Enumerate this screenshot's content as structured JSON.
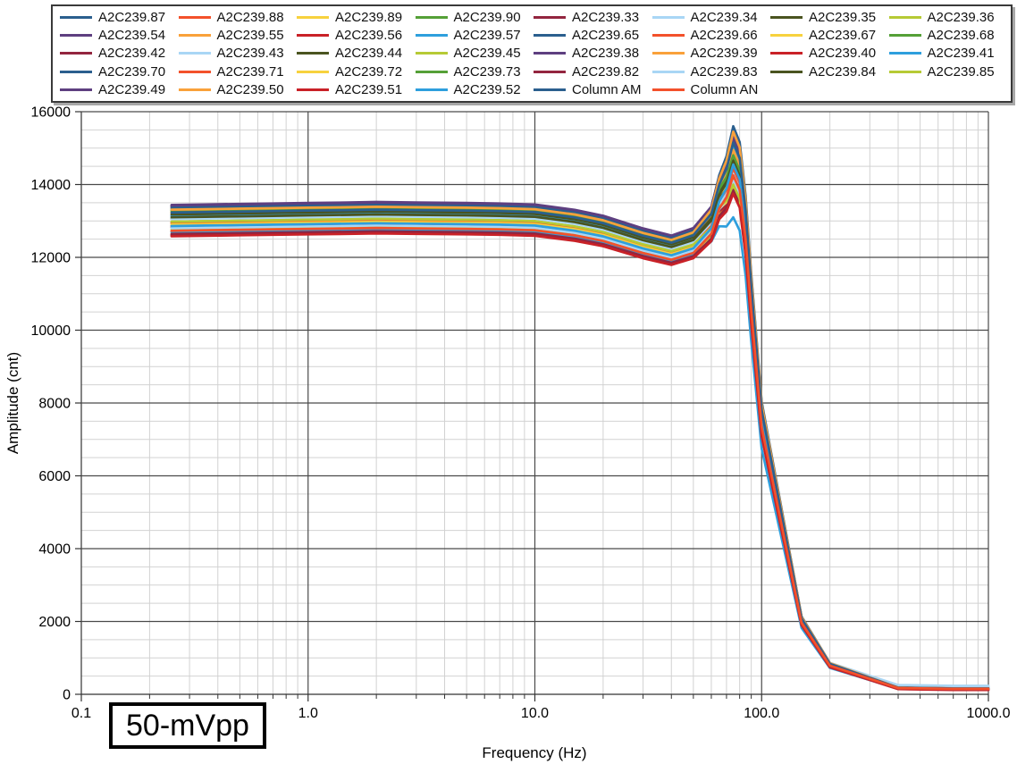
{
  "figure": {
    "caption": "50-mVpp",
    "x_axis": {
      "label": "Frequency (Hz)",
      "scale": "log",
      "min": 0.1,
      "max": 1000,
      "tick_values": [
        0.1,
        1,
        10,
        100,
        1000
      ],
      "tick_labels": [
        "0.1",
        "1.0",
        "10.0",
        "100.0",
        "1000.0"
      ]
    },
    "y_axis": {
      "label": "Amplitude (cnt)",
      "min": 0,
      "max": 16000,
      "major_step": 2000,
      "minor_step": 500,
      "tick_values": [
        0,
        2000,
        4000,
        6000,
        8000,
        10000,
        12000,
        14000,
        16000
      ],
      "tick_labels": [
        "0",
        "2000",
        "4000",
        "6000",
        "8000",
        "10000",
        "12000",
        "14000",
        "16000"
      ]
    },
    "grid": {
      "major_color": "#4a4a4a",
      "minor_color": "#d2d2d2",
      "axis_color": "#333333"
    }
  },
  "palette": [
    "#2B5F8E",
    "#F3512B",
    "#F7D23E",
    "#55A037",
    "#93253F",
    "#A9D6F5",
    "#4A5420",
    "#B6CA35",
    "#5E3F80",
    "#F9A13A",
    "#C92127",
    "#2E9FDD"
  ],
  "chart_data": {
    "type": "line",
    "title": "",
    "xlabel": "Frequency (Hz)",
    "ylabel": "Amplitude (cnt)",
    "x_scale": "log",
    "xlim": [
      0.1,
      1000
    ],
    "ylim": [
      0,
      16000
    ],
    "grid": "major+minor",
    "legend_position": "top",
    "x": [
      0.25,
      0.35,
      0.5,
      0.7,
      1,
      1.5,
      2,
      3,
      5,
      7,
      10,
      15,
      20,
      30,
      40,
      50,
      60,
      65,
      70,
      75,
      80,
      85,
      90,
      100,
      150,
      200,
      400,
      700,
      1000
    ],
    "level_coef": [
      1.0,
      1.001,
      1.002,
      1.003,
      1.004,
      1.005,
      1.006,
      1.005,
      1.004,
      1.003,
      1.001,
      0.99,
      0.978,
      0.952,
      0.9375,
      0.93,
      0.82,
      0.6,
      0.3,
      0,
      0,
      0,
      0,
      0,
      0.02,
      0,
      0,
      0,
      0
    ],
    "peak_coef": [
      0,
      0,
      0,
      0,
      0,
      0,
      0,
      0,
      0,
      0,
      0,
      0,
      0,
      0,
      0,
      0.02,
      0.155,
      0.4,
      0.69,
      1.0,
      0.972,
      0.878,
      0.74,
      0.515,
      0.12,
      0.0552,
      0.012,
      0.0105,
      0.0105
    ],
    "series": [
      {
        "name": "A2C239.87",
        "color_index": 0,
        "level": 13150,
        "peak": 15050,
        "tail": 0
      },
      {
        "name": "A2C239.88",
        "color_index": 1,
        "level": 12940,
        "peak": 14400,
        "tail": 0
      },
      {
        "name": "A2C239.89",
        "color_index": 2,
        "level": 13260,
        "peak": 14250,
        "tail": 0
      },
      {
        "name": "A2C239.90",
        "color_index": 3,
        "level": 13330,
        "peak": 14700,
        "tail": 0
      },
      {
        "name": "A2C239.33",
        "color_index": 4,
        "level": 12870,
        "peak": 14150,
        "tail": 0
      },
      {
        "name": "A2C239.34",
        "color_index": 5,
        "level": 12890,
        "peak": 14300,
        "tail": 55
      },
      {
        "name": "A2C239.35",
        "color_index": 6,
        "level": 13060,
        "peak": 14600,
        "tail": 0
      },
      {
        "name": "A2C239.36",
        "color_index": 7,
        "level": 12980,
        "peak": 13900,
        "tail": 0
      },
      {
        "name": "A2C239.54",
        "color_index": 8,
        "level": 13420,
        "peak": 15350,
        "tail": 0
      },
      {
        "name": "A2C239.55",
        "color_index": 9,
        "level": 13370,
        "peak": 15500,
        "tail": 0
      },
      {
        "name": "A2C239.56",
        "color_index": 10,
        "level": 12600,
        "peak": 14050,
        "tail": -20
      },
      {
        "name": "A2C239.57",
        "color_index": 11,
        "level": 13120,
        "peak": 15100,
        "tail": 0
      },
      {
        "name": "A2C239.65",
        "color_index": 0,
        "level": 13400,
        "peak": 15250,
        "tail": 0
      },
      {
        "name": "A2C239.66",
        "color_index": 1,
        "level": 12710,
        "peak": 14200,
        "tail": 0
      },
      {
        "name": "A2C239.67",
        "color_index": 2,
        "level": 13210,
        "peak": 14500,
        "tail": 0
      },
      {
        "name": "A2C239.68",
        "color_index": 3,
        "level": 13300,
        "peak": 14900,
        "tail": 0
      },
      {
        "name": "A2C239.42",
        "color_index": 4,
        "level": 12830,
        "peak": 13950,
        "tail": 0
      },
      {
        "name": "A2C239.43",
        "color_index": 5,
        "level": 13050,
        "peak": 14350,
        "tail": 70
      },
      {
        "name": "A2C239.44",
        "color_index": 6,
        "level": 13180,
        "peak": 14750,
        "tail": 0
      },
      {
        "name": "A2C239.45",
        "color_index": 7,
        "level": 12760,
        "peak": 13800,
        "tail": 0
      },
      {
        "name": "A2C239.38",
        "color_index": 8,
        "level": 13390,
        "peak": 15200,
        "tail": 0
      },
      {
        "name": "A2C239.39",
        "color_index": 9,
        "level": 13240,
        "peak": 14950,
        "tail": 0
      },
      {
        "name": "A2C239.40",
        "color_index": 10,
        "level": 12620,
        "peak": 13900,
        "tail": -25
      },
      {
        "name": "A2C239.41",
        "color_index": 11,
        "level": 12690,
        "peak": 13100,
        "tail": 0
      },
      {
        "name": "A2C239.70",
        "color_index": 0,
        "level": 13360,
        "peak": 15600,
        "tail": 0
      },
      {
        "name": "A2C239.71",
        "color_index": 1,
        "level": 12950,
        "peak": 14450,
        "tail": 0
      },
      {
        "name": "A2C239.72",
        "color_index": 2,
        "level": 12900,
        "peak": 13980,
        "tail": 0
      },
      {
        "name": "A2C239.73",
        "color_index": 3,
        "level": 13280,
        "peak": 14800,
        "tail": 0
      },
      {
        "name": "A2C239.82",
        "color_index": 4,
        "level": 12640,
        "peak": 13850,
        "tail": 0
      },
      {
        "name": "A2C239.83",
        "color_index": 5,
        "level": 12800,
        "peak": 14100,
        "tail": 85
      },
      {
        "name": "A2C239.84",
        "color_index": 6,
        "level": 13100,
        "peak": 14650,
        "tail": 0
      },
      {
        "name": "A2C239.85",
        "color_index": 7,
        "level": 12980,
        "peak": 14000,
        "tail": 0
      },
      {
        "name": "A2C239.49",
        "color_index": 8,
        "level": 13440,
        "peak": 15300,
        "tail": 0
      },
      {
        "name": "A2C239.50",
        "color_index": 9,
        "level": 13310,
        "peak": 15450,
        "tail": 0
      },
      {
        "name": "A2C239.51",
        "color_index": 10,
        "level": 12580,
        "peak": 13750,
        "tail": -15
      },
      {
        "name": "A2C239.52",
        "color_index": 11,
        "level": 12860,
        "peak": 14550,
        "tail": 0
      },
      {
        "name": "Column AM",
        "color_index": 0,
        "level": 13230,
        "peak": 15150,
        "tail": 0
      },
      {
        "name": "Column AN",
        "color_index": 1,
        "level": 12730,
        "peak": 14250,
        "tail": 0
      }
    ]
  }
}
